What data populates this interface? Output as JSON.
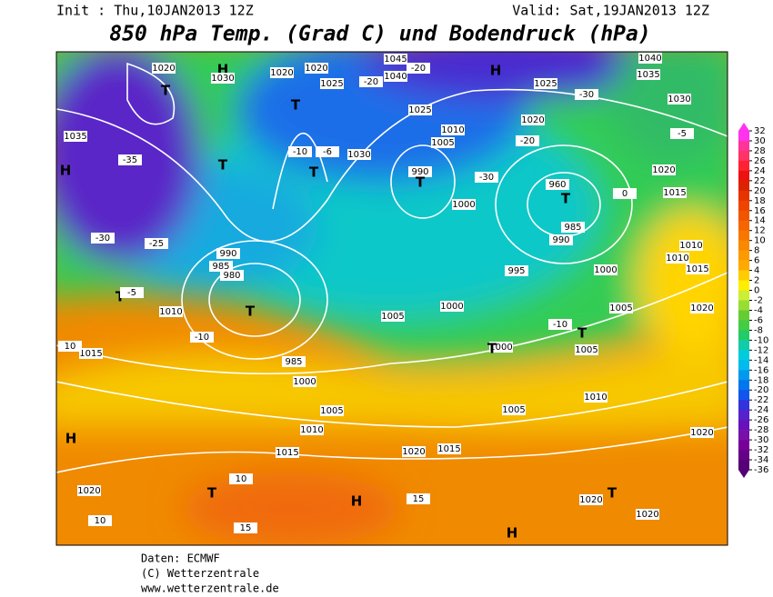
{
  "header": {
    "init": "Init : Thu,10JAN2013 12Z",
    "valid": "Valid: Sat,19JAN2013 12Z",
    "title": "850 hPa Temp. (Grad C) und Bodendruck (hPa)"
  },
  "map_labels": [
    "1020",
    "H",
    "T",
    "1030",
    "1020",
    "1020",
    "1025",
    "-20",
    "1045",
    "-20",
    "1040",
    "H",
    "1025",
    "-30",
    "1040",
    "1035",
    "1030",
    "1035",
    "-35",
    "H",
    "T",
    "T",
    "T",
    "-10",
    "-6",
    "1030",
    "1025",
    "1005",
    "990",
    "T",
    "-30",
    "T",
    "960",
    "985",
    "990",
    "1000",
    "0",
    "1015",
    "1020",
    "-5",
    "-20",
    "1020",
    "1010",
    "1000",
    "-30",
    "-25",
    "T",
    "-5",
    "990",
    "985",
    "980",
    "T",
    "1010",
    "-10",
    "1015",
    "10",
    "H",
    "1020",
    "10",
    "T",
    "10",
    "15",
    "H",
    "15",
    "H",
    "1020",
    "T",
    "1020",
    "1020",
    "1005",
    "1015",
    "1020",
    "1005",
    "1010",
    "1015",
    "1000",
    "985",
    "T",
    "-10",
    "1005",
    "1010",
    "1000",
    "T",
    "1000",
    "1005",
    "995",
    "1005",
    "1020",
    "1010",
    "1015",
    "1010"
  ],
  "colorbar": {
    "ticks": [
      32,
      30,
      28,
      26,
      24,
      22,
      20,
      18,
      16,
      14,
      12,
      10,
      8,
      6,
      4,
      2,
      0,
      -2,
      -4,
      -6,
      -8,
      -10,
      -12,
      -14,
      -16,
      -18,
      -20,
      -22,
      -24,
      -26,
      -28,
      -30,
      -32,
      -34,
      -36
    ],
    "colors": [
      "#ff33ee",
      "#ff3399",
      "#ff3366",
      "#ff2233",
      "#ee1111",
      "#dd2200",
      "#e63300",
      "#ee4400",
      "#f25500",
      "#f56600",
      "#f87700",
      "#fa8800",
      "#fc9a00",
      "#ffaa00",
      "#ffcc00",
      "#ffee00",
      "#ccee33",
      "#99dd33",
      "#66cc33",
      "#44cc44",
      "#22cc66",
      "#11ccaa",
      "#00ccdd",
      "#00bbee",
      "#0099ee",
      "#0077ee",
      "#1155ee",
      "#3333dd",
      "#5522cc",
      "#6611bb",
      "#7711aa",
      "#770099",
      "#660088",
      "#550077"
    ]
  },
  "footer": [
    "Daten: ECMWF",
    "(C) Wetterzentrale",
    "www.wetterzentrale.de"
  ]
}
